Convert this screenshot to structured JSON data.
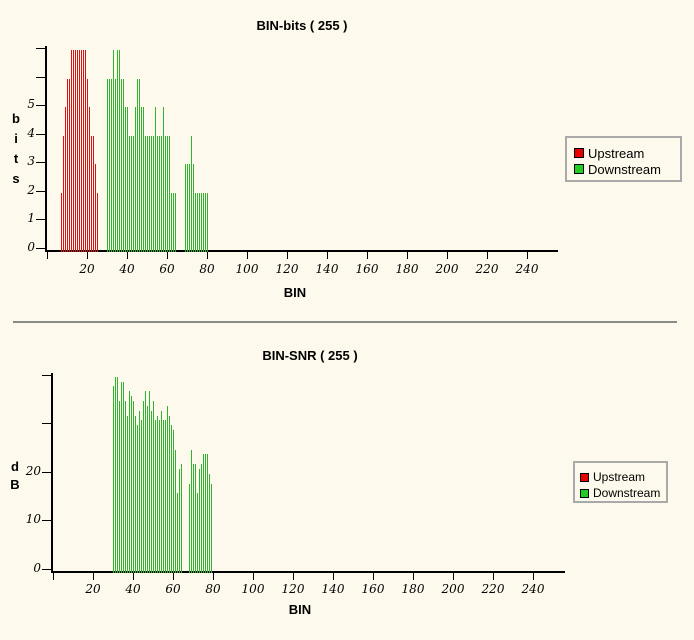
{
  "colors": {
    "background": "#FDF9EC",
    "upstream": "#DD1111",
    "downstream": "#2DB52D",
    "axis": "#000000",
    "separator": "#8A8A8A",
    "legend_border": "#A9A9A9"
  },
  "legend": {
    "items": [
      {
        "label": "Upstream",
        "color": "#E80000"
      },
      {
        "label": "Downstream",
        "color": "#22CC22"
      }
    ]
  },
  "chart_data": [
    {
      "id": "bits",
      "type": "bar",
      "title": "BIN-bits ( 255 )",
      "xlabel": "BIN",
      "ylabel": "bits",
      "ylabel_stack": [
        "b",
        "i",
        "t",
        "s"
      ],
      "xlim": [
        0,
        255
      ],
      "ylim": [
        0,
        7
      ],
      "grid": false,
      "legend_position": "right",
      "x_ticks": [
        20,
        40,
        60,
        80,
        100,
        120,
        140,
        160,
        180,
        200,
        220,
        240
      ],
      "y_ticks_labeled": [
        0,
        1,
        2,
        3,
        4,
        5
      ],
      "y_ticks_unlabeled": [
        6,
        7
      ],
      "series": [
        {
          "name": "Upstream",
          "color": "#DD1111",
          "segments": [
            {
              "start_bin": 7,
              "values": [
                2,
                4,
                5,
                6,
                6,
                7,
                7,
                7,
                7,
                7,
                7,
                7,
                7,
                6,
                5,
                4,
                4,
                3,
                2
              ]
            }
          ]
        },
        {
          "name": "Downstream",
          "color": "#2DB52D",
          "segments": [
            {
              "start_bin": 30,
              "values": [
                6,
                6,
                6,
                7,
                6,
                7,
                7,
                6,
                6,
                5,
                5,
                4,
                4,
                4,
                5,
                6,
                6,
                5,
                5,
                4,
                4,
                4,
                4,
                4,
                5,
                4,
                4,
                4,
                5,
                4,
                4,
                4,
                2,
                2,
                2
              ]
            },
            {
              "start_bin": 69,
              "values": [
                3,
                3,
                3,
                4,
                3,
                2,
                2,
                2,
                2,
                2,
                2,
                2
              ]
            }
          ]
        }
      ]
    },
    {
      "id": "snr",
      "type": "bar",
      "title": "BIN-SNR ( 255 )",
      "xlabel": "BIN",
      "ylabel": "dB",
      "ylabel_stack": [
        "d",
        "B"
      ],
      "xlim": [
        0,
        255
      ],
      "ylim": [
        0,
        40
      ],
      "grid": false,
      "legend_position": "right",
      "x_ticks": [
        20,
        40,
        60,
        80,
        100,
        120,
        140,
        160,
        180,
        200,
        220,
        240
      ],
      "y_ticks_labeled": [
        0,
        10,
        20
      ],
      "y_ticks_unlabeled": [
        30,
        40
      ],
      "series": [
        {
          "name": "Upstream",
          "color": "#DD1111",
          "segments": []
        },
        {
          "name": "Downstream",
          "color": "#2DB52D",
          "segments": [
            {
              "start_bin": 30,
              "values": [
                38,
                40,
                40,
                35,
                39,
                39,
                35,
                32,
                37,
                36,
                35,
                32,
                30,
                33,
                31,
                35,
                37,
                34,
                37,
                33,
                35,
                31,
                32,
                31,
                33,
                31,
                31,
                34,
                32,
                30,
                29,
                25,
                16,
                21,
                22
              ]
            },
            {
              "start_bin": 68,
              "values": [
                18,
                25,
                22,
                22,
                16,
                21,
                22,
                24,
                24,
                24,
                20,
                18
              ]
            }
          ]
        }
      ]
    }
  ]
}
